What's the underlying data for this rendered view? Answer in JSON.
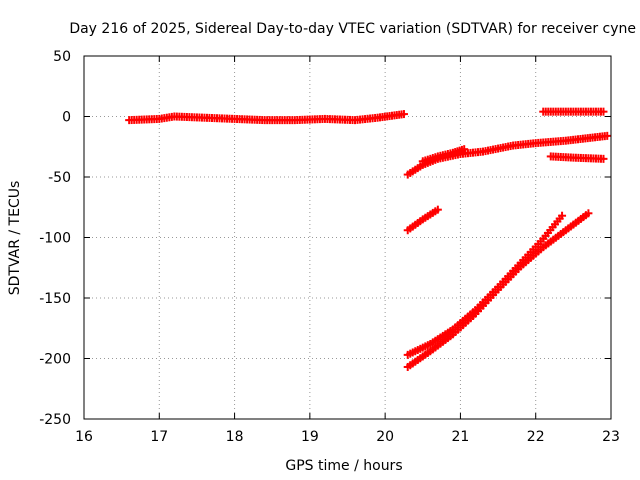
{
  "chart_data": {
    "type": "scatter",
    "title": "Day 216 of 2025, Sidereal Day-to-day VTEC variation (SDTVAR) for receiver cyne",
    "xlabel": "GPS time / hours",
    "ylabel": "SDTVAR / TECUs",
    "xlim": [
      16,
      23
    ],
    "ylim": [
      -250,
      50
    ],
    "xticks": [
      "16",
      "17",
      "18",
      "19",
      "20",
      "21",
      "22",
      "23"
    ],
    "yticks": [
      "-250",
      "-200",
      "-150",
      "-100",
      "-50",
      "0",
      "50"
    ],
    "grid": true,
    "marker_color": "#ff0000",
    "series": [
      {
        "x": [
          16.6,
          17.0,
          17.2,
          17.6,
          18.0,
          18.4,
          18.8,
          19.2,
          19.6,
          19.9,
          20.25
        ],
        "y": [
          -3,
          -2,
          0,
          -1,
          -2,
          -3,
          -3,
          -2,
          -3,
          -1,
          2
        ]
      },
      {
        "x": [
          20.3,
          20.5,
          20.7,
          21.0,
          21.3,
          21.7,
          22.0,
          22.4,
          22.95
        ],
        "y": [
          -48,
          -40,
          -35,
          -31,
          -29,
          -24,
          -22,
          -20,
          -16
        ]
      },
      {
        "x": [
          20.5,
          20.7,
          20.9,
          21.05
        ],
        "y": [
          -37,
          -33,
          -30,
          -27
        ]
      },
      {
        "x": [
          22.1,
          22.5,
          22.9
        ],
        "y": [
          4,
          4,
          4
        ]
      },
      {
        "x": [
          22.2,
          22.5,
          22.9
        ],
        "y": [
          -33,
          -34,
          -35
        ]
      },
      {
        "x": [
          20.3,
          20.5,
          20.7
        ],
        "y": [
          -94,
          -85,
          -77
        ]
      },
      {
        "x": [
          20.3,
          20.6,
          20.9,
          21.2,
          21.5,
          21.8,
          22.1,
          22.35
        ],
        "y": [
          -197,
          -188,
          -176,
          -160,
          -141,
          -121,
          -101,
          -82
        ]
      },
      {
        "x": [
          20.3,
          20.6,
          20.9,
          21.2,
          21.5,
          21.8,
          22.1,
          22.4,
          22.7
        ],
        "y": [
          -207,
          -194,
          -180,
          -163,
          -143,
          -124,
          -108,
          -94,
          -80
        ]
      }
    ]
  }
}
